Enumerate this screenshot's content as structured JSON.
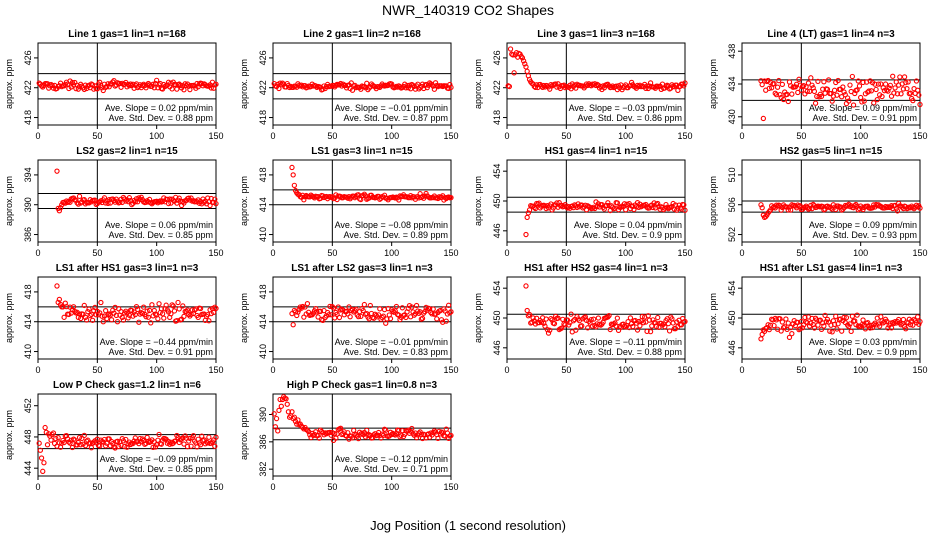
{
  "figure": {
    "title": "NWR_140319  CO2 Shapes",
    "xlabel": "Jog Position (1 second resolution)",
    "marker_color": "#ff0000",
    "line_color": "#000000"
  },
  "chart_data": [
    {
      "type": "scatter",
      "title": "Line 1 gas=1 lin=1 n=168",
      "ylabel": "approx. ppm",
      "xlim": [
        0,
        150
      ],
      "ylim": [
        417,
        428
      ],
      "yticks": [
        418,
        422,
        426
      ],
      "xticks": [
        0,
        50,
        100,
        150
      ],
      "hlines": [
        423.9,
        420.5
      ],
      "vline": 50,
      "slope_text": "Ave. Slope =  0.02  ppm/min",
      "sd_text": "Ave. Std. Dev. =  0.88  ppm",
      "x_start": 1,
      "level": 422.3,
      "noise": 0.25,
      "transient": []
    },
    {
      "type": "scatter",
      "title": "Line 2 gas=1 lin=2 n=168",
      "ylabel": "approx. ppm",
      "xlim": [
        0,
        150
      ],
      "ylim": [
        417,
        428
      ],
      "yticks": [
        418,
        422,
        426
      ],
      "xticks": [
        0,
        50,
        100,
        150
      ],
      "hlines": [
        423.9,
        420.5
      ],
      "vline": 50,
      "slope_text": "Ave. Slope = −0.01  ppm/min",
      "sd_text": "Ave. Std. Dev. =  0.87  ppm",
      "x_start": 1,
      "level": 422.2,
      "noise": 0.2,
      "transient": []
    },
    {
      "type": "scatter",
      "title": "Line 3 gas=1 lin=3 n=168",
      "ylabel": "approx. ppm",
      "xlim": [
        0,
        150
      ],
      "ylim": [
        417,
        428
      ],
      "yticks": [
        418,
        422,
        426
      ],
      "xticks": [
        0,
        50,
        100,
        150
      ],
      "hlines": [
        423.9,
        420.5
      ],
      "vline": 50,
      "slope_text": "Ave. Slope = −0.03  ppm/min",
      "sd_text": "Ave. Std. Dev. =  0.86  ppm",
      "x_start": 1,
      "level": 422.2,
      "noise": 0.2,
      "transient": [
        [
          3,
          427.2
        ],
        [
          4,
          426.5
        ],
        [
          5,
          426.4
        ],
        [
          6,
          424
        ],
        [
          7,
          426.4
        ],
        [
          8,
          426.7
        ],
        [
          9,
          426.1
        ],
        [
          10,
          426.6
        ],
        [
          11,
          426.5
        ],
        [
          12,
          426.2
        ],
        [
          13,
          426
        ],
        [
          14,
          425.6
        ],
        [
          15,
          425.2
        ],
        [
          16,
          424.8
        ],
        [
          17,
          424.2
        ],
        [
          18,
          423.6
        ],
        [
          19,
          423.1
        ],
        [
          20,
          422.8
        ],
        [
          21,
          422.6
        ],
        [
          22,
          422.5
        ]
      ]
    },
    {
      "type": "scatter",
      "title": "Line 4 (LT) gas=1 lin=4 n=3",
      "ylabel": "approx. ppm",
      "xlim": [
        0,
        150
      ],
      "ylim": [
        429,
        439
      ],
      "yticks": [
        430,
        434,
        438
      ],
      "xticks": [
        0,
        50,
        100,
        150
      ],
      "hlines": [
        434.5,
        432
      ],
      "vline": 50,
      "slope_text": "Ave. Slope =  0.09  ppm/min",
      "sd_text": "Ave. Std. Dev. =  0.91  ppm",
      "x_start": 16,
      "level": 433.3,
      "noise": 0.8,
      "transient": [
        [
          18,
          429.8
        ],
        [
          16,
          434.4
        ]
      ]
    },
    {
      "type": "scatter",
      "title": "LS2 gas=2 lin=1 n=15",
      "ylabel": "approx. ppm",
      "xlim": [
        0,
        150
      ],
      "ylim": [
        385,
        396
      ],
      "yticks": [
        386,
        390,
        394
      ],
      "xticks": [
        0,
        50,
        100,
        150
      ],
      "hlines": [
        391.5,
        389.5
      ],
      "vline": 50,
      "slope_text": "Ave. Slope =  0.06  ppm/min",
      "sd_text": "Ave. Std. Dev. =  0.85  ppm",
      "x_start": 16,
      "level": 390.5,
      "noise": 0.25,
      "transient": [
        [
          16,
          394.5
        ],
        [
          17,
          389.5
        ],
        [
          18,
          389.2
        ],
        [
          19,
          389.6
        ],
        [
          20,
          390
        ],
        [
          21,
          390.3
        ]
      ]
    },
    {
      "type": "scatter",
      "title": "LS1 gas=3 lin=1 n=15",
      "ylabel": "approx. ppm",
      "xlim": [
        0,
        150
      ],
      "ylim": [
        409,
        420
      ],
      "yticks": [
        410,
        414,
        418
      ],
      "xticks": [
        0,
        50,
        100,
        150
      ],
      "hlines": [
        416,
        414
      ],
      "vline": 50,
      "slope_text": "Ave. Slope = −0.08  ppm/min",
      "sd_text": "Ave. Std. Dev. =  0.89  ppm",
      "x_start": 16,
      "level": 415,
      "noise": 0.2,
      "transient": [
        [
          16,
          419
        ],
        [
          17,
          418
        ],
        [
          18,
          416.6
        ],
        [
          19,
          415.9
        ],
        [
          20,
          415.6
        ],
        [
          21,
          415.4
        ]
      ]
    },
    {
      "type": "scatter",
      "title": "HS1 gas=4 lin=1 n=15",
      "ylabel": "approx. ppm",
      "xlim": [
        0,
        150
      ],
      "ylim": [
        444.5,
        455.5
      ],
      "yticks": [
        446,
        450,
        454
      ],
      "xticks": [
        0,
        50,
        100,
        150
      ],
      "hlines": [
        450.5,
        448.5
      ],
      "vline": 50,
      "slope_text": "Ave. Slope =  0.04  ppm/min",
      "sd_text": "Ave. Std. Dev. =  0.9  ppm",
      "x_start": 16,
      "level": 449.3,
      "noise": 0.25,
      "transient": [
        [
          16,
          445.5
        ],
        [
          17,
          447.8
        ],
        [
          18,
          448.4
        ],
        [
          19,
          448.8
        ]
      ]
    },
    {
      "type": "scatter",
      "title": "HS2 gas=5 lin=1 n=15",
      "ylabel": "approx. ppm",
      "xlim": [
        0,
        150
      ],
      "ylim": [
        501,
        512
      ],
      "yticks": [
        502,
        506,
        510
      ],
      "xticks": [
        0,
        50,
        100,
        150
      ],
      "hlines": [
        506.5,
        505
      ],
      "vline": 50,
      "slope_text": "Ave. Slope =  0.09  ppm/min",
      "sd_text": "Ave. Std. Dev. =  0.93  ppm",
      "x_start": 16,
      "level": 505.7,
      "noise": 0.2,
      "transient": [
        [
          16,
          506
        ],
        [
          17,
          505.6
        ],
        [
          18,
          504.6
        ],
        [
          19,
          504.3
        ],
        [
          20,
          504.4
        ],
        [
          21,
          504.6
        ],
        [
          22,
          504.9
        ],
        [
          23,
          505.1
        ],
        [
          24,
          505.3
        ]
      ]
    },
    {
      "type": "scatter",
      "title": "LS1 after HS1 gas=3 lin=1 n=3",
      "ylabel": "approx. ppm",
      "xlim": [
        0,
        150
      ],
      "ylim": [
        409,
        420
      ],
      "yticks": [
        410,
        414,
        418
      ],
      "xticks": [
        0,
        50,
        100,
        150
      ],
      "hlines": [
        416,
        414
      ],
      "vline": 50,
      "slope_text": "Ave. Slope = −0.44  ppm/min",
      "sd_text": "Ave. Std. Dev. =  0.91  ppm",
      "x_start": 16,
      "level": 415.2,
      "noise": 0.6,
      "transient": [
        [
          16,
          418.8
        ],
        [
          17,
          416.6
        ],
        [
          18,
          417
        ],
        [
          19,
          416.3
        ],
        [
          20,
          416
        ]
      ]
    },
    {
      "type": "scatter",
      "title": "LS1 after LS2 gas=3 lin=1 n=3",
      "ylabel": "approx. ppm",
      "xlim": [
        0,
        150
      ],
      "ylim": [
        409,
        420
      ],
      "yticks": [
        410,
        414,
        418
      ],
      "xticks": [
        0,
        50,
        100,
        150
      ],
      "hlines": [
        416,
        414
      ],
      "vline": 50,
      "slope_text": "Ave. Slope = −0.01  ppm/min",
      "sd_text": "Ave. Std. Dev. =  0.83  ppm",
      "x_start": 16,
      "level": 415.2,
      "noise": 0.6,
      "transient": [
        [
          17,
          413.6
        ],
        [
          148,
          416.2
        ]
      ]
    },
    {
      "type": "scatter",
      "title": "HS1 after HS2 gas=4 lin=1 n=3",
      "ylabel": "approx. ppm",
      "xlim": [
        0,
        150
      ],
      "ylim": [
        444.5,
        455.5
      ],
      "yticks": [
        446,
        450,
        454
      ],
      "xticks": [
        0,
        50,
        100,
        150
      ],
      "hlines": [
        450.5,
        448.5
      ],
      "vline": 50,
      "slope_text": "Ave. Slope = −0.11  ppm/min",
      "sd_text": "Ave. Std. Dev. =  0.88  ppm",
      "x_start": 16,
      "level": 449.3,
      "noise": 0.5,
      "transient": [
        [
          16,
          454.3
        ],
        [
          17,
          451
        ],
        [
          18,
          450.3
        ]
      ]
    },
    {
      "type": "scatter",
      "title": "HS1 after LS1 gas=4 lin=1 n=3",
      "ylabel": "approx. ppm",
      "xlim": [
        0,
        150
      ],
      "ylim": [
        444.5,
        455.5
      ],
      "yticks": [
        446,
        450,
        454
      ],
      "xticks": [
        0,
        50,
        100,
        150
      ],
      "hlines": [
        450.5,
        448.5
      ],
      "vline": 50,
      "slope_text": "Ave. Slope =  0.03  ppm/min",
      "sd_text": "Ave. Std. Dev. =  0.9  ppm",
      "x_start": 16,
      "level": 449.3,
      "noise": 0.5,
      "transient": [
        [
          16,
          447.2
        ],
        [
          17,
          447.8
        ],
        [
          18,
          448.4
        ],
        [
          19,
          448.2
        ],
        [
          20,
          448.6
        ],
        [
          40,
          447.4
        ],
        [
          42,
          447.9
        ]
      ]
    },
    {
      "type": "scatter",
      "title": "Low P Check gas=1.2 lin=1 n=6",
      "ylabel": "approx. ppm",
      "xlim": [
        0,
        150
      ],
      "ylim": [
        443,
        453.5
      ],
      "yticks": [
        444,
        448,
        452
      ],
      "xticks": [
        0,
        50,
        100,
        150
      ],
      "hlines": [
        448.3,
        446.5
      ],
      "vline": 50,
      "slope_text": "Ave. Slope = −0.09  ppm/min",
      "sd_text": "Ave. Std. Dev. =  0.85  ppm",
      "x_start": 1,
      "level": 447.4,
      "noise": 0.35,
      "transient": [
        [
          1,
          447.2
        ],
        [
          2,
          446.3
        ],
        [
          3,
          445.3
        ],
        [
          4,
          443.6
        ],
        [
          5,
          444.7
        ],
        [
          6,
          449.2
        ],
        [
          7,
          448.6
        ],
        [
          8,
          447
        ],
        [
          9,
          448.4
        ],
        [
          10,
          448.1
        ],
        [
          11,
          447.6
        ],
        [
          12,
          448.3
        ],
        [
          13,
          448.5
        ]
      ]
    },
    {
      "type": "scatter",
      "title": "High P Check gas=1 lin=0.8 n=3",
      "ylabel": "approx. ppm",
      "xlim": [
        0,
        150
      ],
      "ylim": [
        381,
        393
      ],
      "yticks": [
        382,
        386,
        390
      ],
      "xticks": [
        0,
        50,
        100,
        150
      ],
      "hlines": [
        388,
        386.3
      ],
      "vline": 50,
      "slope_text": "Ave. Slope = −0.12  ppm/min",
      "sd_text": "Ave. Std. Dev. =  0.71  ppm",
      "x_start": 1,
      "level": 387.1,
      "noise": 0.35,
      "transient": [
        [
          1,
          390.1
        ],
        [
          2,
          388.2
        ],
        [
          3,
          389.4
        ],
        [
          4,
          387.6
        ],
        [
          5,
          390.6
        ],
        [
          6,
          392.2
        ],
        [
          7,
          391.2
        ],
        [
          8,
          392.2
        ],
        [
          9,
          392.6
        ],
        [
          10,
          392.4
        ],
        [
          11,
          392.3
        ],
        [
          12,
          391.5
        ],
        [
          13,
          390.4
        ],
        [
          14,
          389.6
        ],
        [
          15,
          389.8
        ],
        [
          16,
          390.4
        ],
        [
          17,
          389.4
        ],
        [
          18,
          389.6
        ],
        [
          19,
          389
        ],
        [
          20,
          388.6
        ],
        [
          21,
          389.2
        ],
        [
          22,
          388.5
        ],
        [
          23,
          388.6
        ],
        [
          24,
          388.3
        ],
        [
          25,
          388.1
        ],
        [
          26,
          387.9
        ],
        [
          27,
          388.1
        ],
        [
          28,
          387.8
        ],
        [
          29,
          387.7
        ],
        [
          30,
          387.5
        ]
      ]
    }
  ]
}
